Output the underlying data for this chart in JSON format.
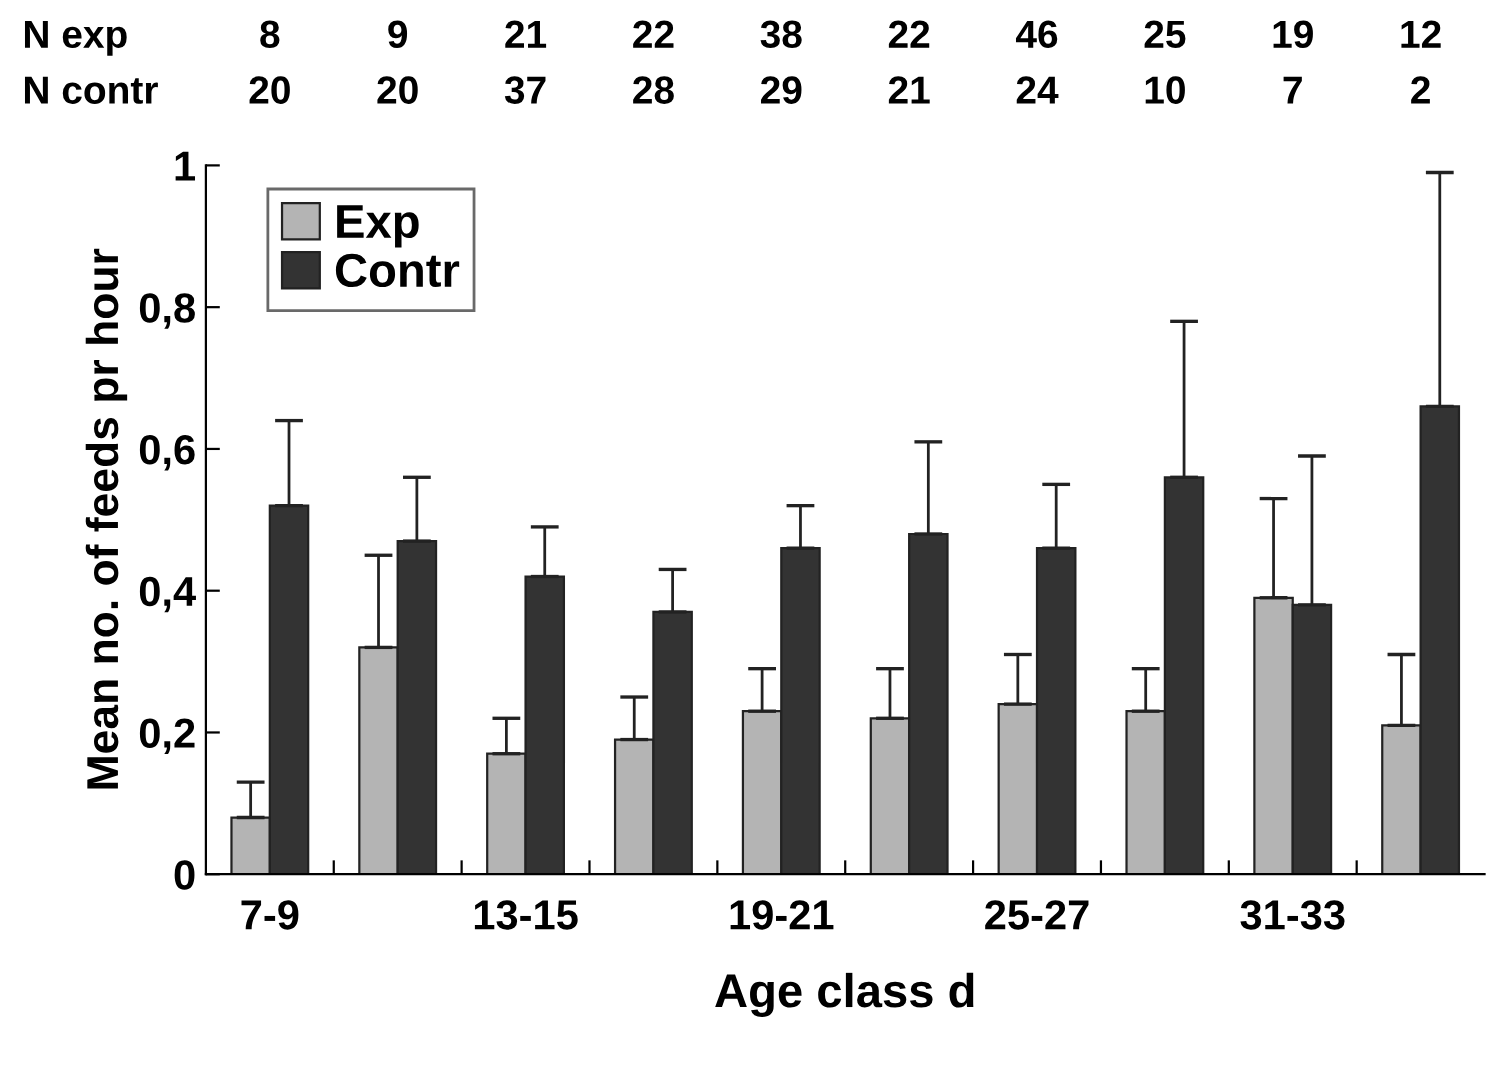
{
  "chart_data": {
    "type": "bar",
    "xlabel": "Age class d",
    "ylabel": "Mean no. of feeds pr hour",
    "categories": [
      "7-9",
      null,
      "13-15",
      null,
      "19-21",
      null,
      "25-27",
      null,
      "31-33",
      null
    ],
    "series": [
      {
        "name": "Exp",
        "color": "#b4b4b4",
        "values": [
          0.08,
          0.32,
          0.17,
          0.19,
          0.23,
          0.22,
          0.24,
          0.23,
          0.39,
          0.21
        ],
        "errors": [
          [
            0.08,
            0.13
          ],
          [
            0.32,
            0.45
          ],
          [
            0.17,
            0.22
          ],
          [
            0.19,
            0.25
          ],
          [
            0.23,
            0.29
          ],
          [
            0.22,
            0.29
          ],
          [
            0.24,
            0.31
          ],
          [
            0.23,
            0.29
          ],
          [
            0.39,
            0.53
          ],
          [
            0.21,
            0.31
          ]
        ]
      },
      {
        "name": "Contr",
        "color": "#333333",
        "values": [
          0.52,
          0.47,
          0.42,
          0.37,
          0.46,
          0.48,
          0.46,
          0.56,
          0.38,
          0.66
        ],
        "errors": [
          [
            0.52,
            0.64
          ],
          [
            0.47,
            0.56
          ],
          [
            0.42,
            0.49
          ],
          [
            0.37,
            0.43
          ],
          [
            0.46,
            0.52
          ],
          [
            0.48,
            0.61
          ],
          [
            0.46,
            0.55
          ],
          [
            0.56,
            0.78
          ],
          [
            0.38,
            0.59
          ],
          [
            0.66,
            0.99
          ]
        ]
      }
    ],
    "ylim": [
      0,
      1
    ],
    "yticks": [
      0,
      {
        "value": 0.2,
        "label": "0,2"
      },
      {
        "value": 0.4,
        "label": "0,4"
      },
      {
        "value": 0.6,
        "label": "0,6"
      },
      {
        "value": 0.8,
        "label": "0,8"
      },
      1
    ],
    "legend": "top left",
    "annotations": [
      "N exp",
      "8",
      "9",
      "21",
      "22",
      "38",
      "22",
      "46",
      "25",
      "19",
      "12",
      "N contr",
      "20",
      "20",
      "37",
      "28",
      "29",
      "21",
      "24",
      "10",
      "7",
      "2"
    ]
  }
}
